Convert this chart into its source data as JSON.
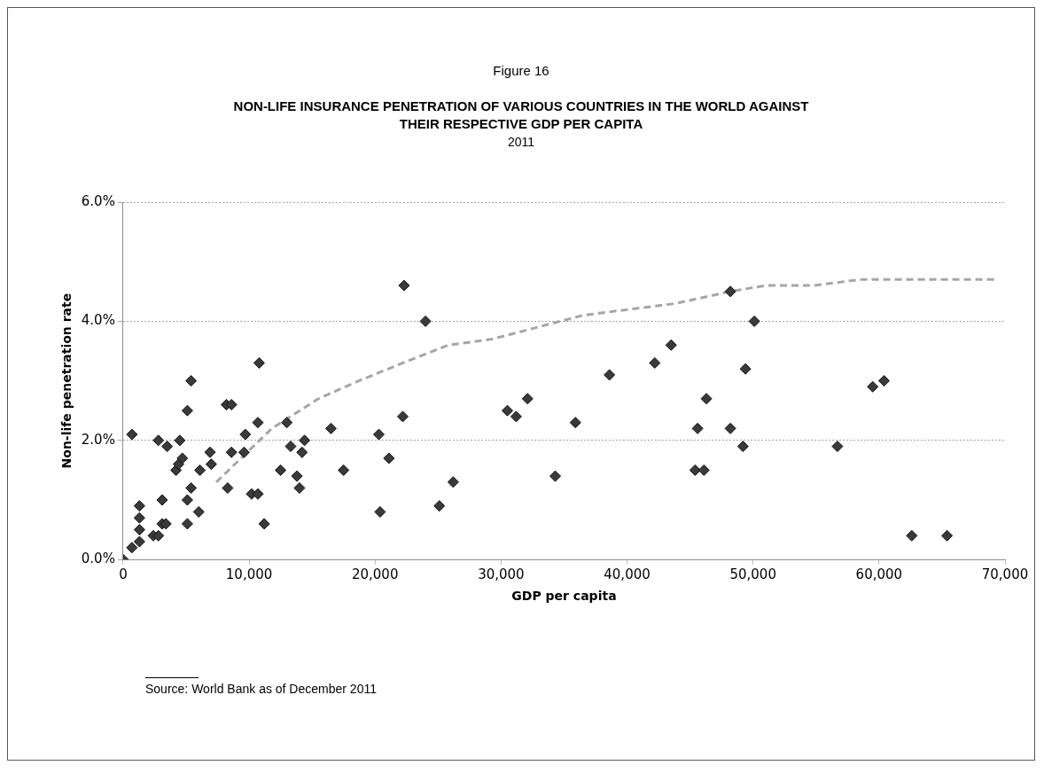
{
  "chart_data": {
    "type": "scatter",
    "title": "NON-LIFE INSURANCE PENETRATION OF VARIOUS COUNTRIES IN THE WORLD AGAINST THEIR RESPECTIVE GDP PER CAPITA",
    "subtitle": "2011",
    "xlabel": "GDP per capita",
    "ylabel": "Non-life penetration rate",
    "annotations": [
      "Figure 16",
      "Source: World Bank as of December 2011"
    ],
    "xlim": [
      0,
      70000
    ],
    "xticks": [
      0,
      {
        "value": 10000,
        "label": "10,000"
      },
      {
        "value": 20000,
        "label": "20,000"
      },
      {
        "value": 30000,
        "label": "30,000"
      },
      {
        "value": 40000,
        "label": "40,000"
      },
      {
        "value": 50000,
        "label": "50,000"
      },
      {
        "value": 60000,
        "label": "60,000"
      },
      {
        "value": 70000,
        "label": "70,000"
      }
    ],
    "ylim": [
      0,
      6
    ],
    "yticks": [
      {
        "value": 0,
        "label": "0.0%"
      },
      {
        "value": 2,
        "label": "2.0%"
      },
      {
        "value": 4,
        "label": "4.0%"
      },
      {
        "value": 6,
        "label": "6.0%"
      }
    ],
    "grid": "y",
    "legend": false,
    "series": [
      {
        "type": "scatter",
        "marker": "diamond",
        "color": "#3a3a3a",
        "x": [
          0,
          700,
          1300,
          1300,
          1300,
          1300,
          2400,
          2800,
          3100,
          3100,
          3400,
          5100,
          5100,
          4200,
          4400,
          4700,
          5400,
          6000,
          6100,
          7000,
          6900,
          8300,
          8600,
          9600,
          10200,
          10700,
          11200,
          10700,
          10800,
          13000,
          12500,
          13300,
          13800,
          14000,
          14200,
          14400,
          9700,
          700,
          2800,
          3500,
          4500,
          5100,
          5400,
          8200,
          8600,
          16500,
          17500,
          20300,
          20400,
          21100,
          22200,
          22300,
          24000,
          25100,
          26200,
          30500,
          31200,
          32100,
          34300,
          35900,
          38600,
          42200,
          43500,
          45400,
          45600,
          46100,
          46300,
          48200,
          48200,
          49200,
          49400,
          50100,
          56700,
          59500,
          60400,
          62600,
          65400
        ],
        "values": [
          0.0,
          0.2,
          0.3,
          0.5,
          0.7,
          0.9,
          0.4,
          0.4,
          0.6,
          1.0,
          0.6,
          0.6,
          1.0,
          1.5,
          1.6,
          1.7,
          1.2,
          0.8,
          1.5,
          1.6,
          1.8,
          1.2,
          1.8,
          1.8,
          1.1,
          1.1,
          0.6,
          2.3,
          3.3,
          2.3,
          1.5,
          1.9,
          1.4,
          1.2,
          1.8,
          2.0,
          2.1,
          2.1,
          2.0,
          1.9,
          2.0,
          2.5,
          3.0,
          2.6,
          2.6,
          2.2,
          1.5,
          2.1,
          0.8,
          1.7,
          2.4,
          4.6,
          4.0,
          0.9,
          1.3,
          2.5,
          2.4,
          2.7,
          1.4,
          2.3,
          3.1,
          3.3,
          3.6,
          1.5,
          2.2,
          1.5,
          2.7,
          4.5,
          2.2,
          1.9,
          3.2,
          4.0,
          1.9,
          2.9,
          3.0,
          0.4,
          0.4
        ]
      },
      {
        "type": "line",
        "marker": "none",
        "line_style": "dashed",
        "color": "#a6a6a6",
        "x": [
          7400,
          11800,
          15500,
          18700,
          22200,
          25800,
          29300,
          32900,
          36500,
          40200,
          43900,
          48200,
          51000,
          54800,
          58500,
          62300,
          66000,
          69200
        ],
        "values": [
          1.3,
          2.2,
          2.7,
          3.0,
          3.3,
          3.6,
          3.7,
          3.9,
          4.1,
          4.2,
          4.3,
          4.5,
          4.6,
          4.6,
          4.7,
          4.7,
          4.7,
          4.7
        ]
      }
    ]
  }
}
